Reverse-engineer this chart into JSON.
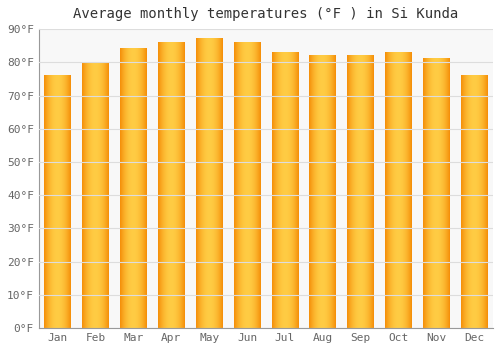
{
  "title": "Average monthly temperatures (°F ) in Si Kunda",
  "months": [
    "Jan",
    "Feb",
    "Mar",
    "Apr",
    "May",
    "Jun",
    "Jul",
    "Aug",
    "Sep",
    "Oct",
    "Nov",
    "Dec"
  ],
  "values": [
    76,
    80,
    84,
    86,
    87,
    86,
    83,
    82,
    82,
    83,
    81,
    76
  ],
  "bar_color_center": "#FFCC44",
  "bar_color_edge": "#F5900A",
  "background_color": "#FFFFFF",
  "plot_bg_color": "#F8F8F8",
  "ylim": [
    0,
    90
  ],
  "yticks": [
    0,
    10,
    20,
    30,
    40,
    50,
    60,
    70,
    80,
    90
  ],
  "ytick_labels": [
    "0°F",
    "10°F",
    "20°F",
    "30°F",
    "40°F",
    "50°F",
    "60°F",
    "70°F",
    "80°F",
    "90°F"
  ],
  "title_fontsize": 10,
  "tick_fontsize": 8,
  "grid_color": "#DDDDDD",
  "bar_width": 0.7,
  "n_gradient_steps": 30
}
